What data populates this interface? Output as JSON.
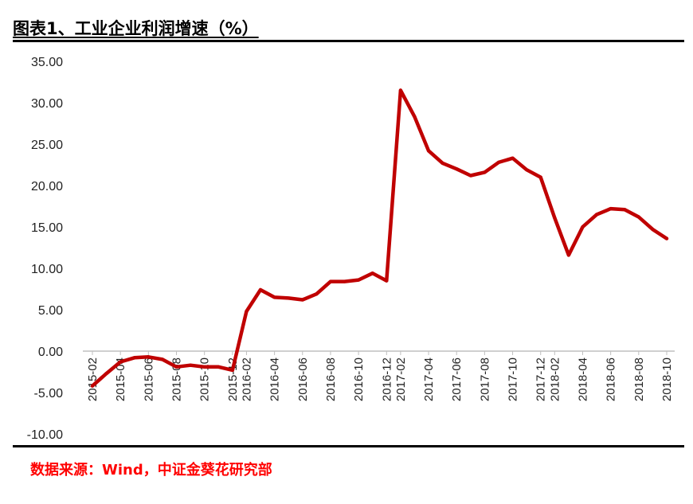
{
  "title": "图表1、工业企业利润增速（%）",
  "source": "数据来源：Wind，中证金葵花研究部",
  "colors": {
    "line": "#c00000",
    "axis": "#bfbfbf",
    "text": "#222222",
    "source": "#ff0000"
  },
  "chart_data": {
    "type": "line",
    "x": [
      "2015-02",
      "2015-03",
      "2015-04",
      "2015-05",
      "2015-06",
      "2015-07",
      "2015-08",
      "2015-09",
      "2015-10",
      "2015-11",
      "2015-12",
      "2016-02",
      "2016-03",
      "2016-04",
      "2016-05",
      "2016-06",
      "2016-07",
      "2016-08",
      "2016-09",
      "2016-10",
      "2016-11",
      "2016-12",
      "2017-02",
      "2017-03",
      "2017-04",
      "2017-05",
      "2017-06",
      "2017-07",
      "2017-08",
      "2017-09",
      "2017-10",
      "2017-11",
      "2017-12",
      "2018-02",
      "2018-03",
      "2018-04",
      "2018-05",
      "2018-06",
      "2018-07",
      "2018-08",
      "2018-09",
      "2018-10"
    ],
    "xticks": [
      "2015-02",
      "2015-04",
      "2015-06",
      "2015-08",
      "2015-10",
      "2015-12",
      "2016-02",
      "2016-04",
      "2016-06",
      "2016-08",
      "2016-10",
      "2016-12",
      "2017-02",
      "2017-04",
      "2017-06",
      "2017-08",
      "2017-10",
      "2017-12",
      "2018-02",
      "2018-04",
      "2018-06",
      "2018-08",
      "2018-10"
    ],
    "series": [
      {
        "values": [
          -4.2,
          -2.7,
          -1.3,
          -0.8,
          -0.7,
          -1.0,
          -1.9,
          -1.7,
          -1.9,
          -1.9,
          -2.3,
          4.8,
          7.4,
          6.5,
          6.4,
          6.2,
          6.9,
          8.4,
          8.4,
          8.6,
          9.4,
          8.5,
          31.5,
          28.3,
          24.2,
          22.7,
          22.0,
          21.2,
          21.6,
          22.8,
          23.3,
          21.9,
          21.0,
          16.1,
          11.6,
          15.0,
          16.5,
          17.2,
          17.1,
          16.2,
          14.7,
          13.6
        ]
      }
    ],
    "ylim": [
      -10,
      35
    ],
    "yticks": [
      "35.00",
      "30.00",
      "25.00",
      "20.00",
      "15.00",
      "10.00",
      "5.00",
      "0.00",
      "-5.00",
      "-10.00"
    ],
    "grid": false
  }
}
